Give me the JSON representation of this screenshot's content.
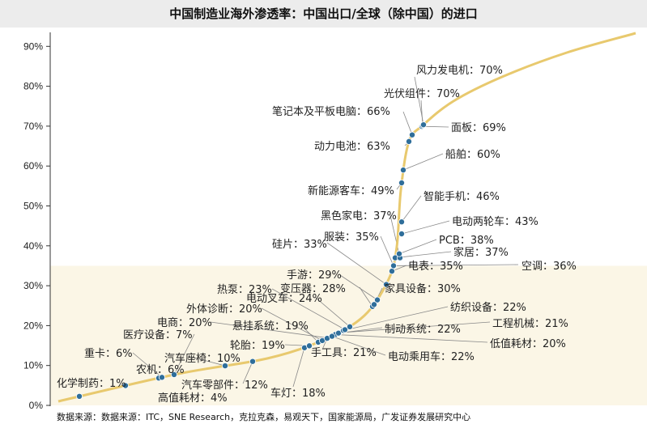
{
  "chart_data": {
    "type": "scatter",
    "title": "中国制造业海外渗透率：中国出口/全球（除中国）的进口",
    "xlabel": "",
    "ylabel": "",
    "ylim": [
      0,
      90
    ],
    "yticks": [
      "0%",
      "10%",
      "20%",
      "30%",
      "40%",
      "50%",
      "60%",
      "70%",
      "80%",
      "90%"
    ],
    "grid": false,
    "highlight_band": {
      "from": 0,
      "to": 35,
      "color": "#fbf6e6"
    },
    "curve_color": "#e8c96e",
    "point_color": "#2f6e9a",
    "points": [
      {
        "label": "化学制药：1%",
        "y": 1
      },
      {
        "label": "高值耗材：4%",
        "y": 4
      },
      {
        "label": "农机：6%",
        "y": 6
      },
      {
        "label": "重卡：6%",
        "y": 6
      },
      {
        "label": "医疗设备：7%",
        "y": 7
      },
      {
        "label": "汽车座椅：10%",
        "y": 10
      },
      {
        "label": "汽车零部件：12%",
        "y": 12
      },
      {
        "label": "车灯：18%",
        "y": 18
      },
      {
        "label": "轮胎：19%",
        "y": 19
      },
      {
        "label": "悬挂系统：19%",
        "y": 19
      },
      {
        "label": "外体诊断：20%",
        "y": 20
      },
      {
        "label": "电商：20%",
        "y": 20
      },
      {
        "label": "低值耗材：20%",
        "y": 20
      },
      {
        "label": "手工具：21%",
        "y": 21
      },
      {
        "label": "工程机械：21%",
        "y": 21
      },
      {
        "label": "制动系统：22%",
        "y": 22
      },
      {
        "label": "电动乘用车：22%",
        "y": 22
      },
      {
        "label": "纺织设备：22%",
        "y": 22
      },
      {
        "label": "热泵：23%",
        "y": 23
      },
      {
        "label": "电动叉车：24%",
        "y": 24
      },
      {
        "label": "变压器：28%",
        "y": 28
      },
      {
        "label": "手游：29%",
        "y": 29
      },
      {
        "label": "家具设备：30%",
        "y": 30
      },
      {
        "label": "硅片：33%",
        "y": 33
      },
      {
        "label": "电表：35%",
        "y": 35
      },
      {
        "label": "服装：35%",
        "y": 35
      },
      {
        "label": "空调：36%",
        "y": 36
      },
      {
        "label": "家居：37%",
        "y": 37
      },
      {
        "label": "黑色家电：37%",
        "y": 37
      },
      {
        "label": "PCB：38%",
        "y": 38
      },
      {
        "label": "电动两轮车：43%",
        "y": 43
      },
      {
        "label": "智能手机：46%",
        "y": 46
      },
      {
        "label": "新能源客车：49%",
        "y": 49
      },
      {
        "label": "船舶：60%",
        "y": 60
      },
      {
        "label": "动力电池：63%",
        "y": 63
      },
      {
        "label": "笔记本及平板电脑：66%",
        "y": 66
      },
      {
        "label": "面板：69%",
        "y": 69
      },
      {
        "label": "光伏组件：70%",
        "y": 70
      },
      {
        "label": "风力发电机：70%",
        "y": 70
      }
    ],
    "source": "数据来源：数据来源：ITC，SNE Research，克拉克森，易观天下，国家能源局，广发证券发展研究中心"
  }
}
